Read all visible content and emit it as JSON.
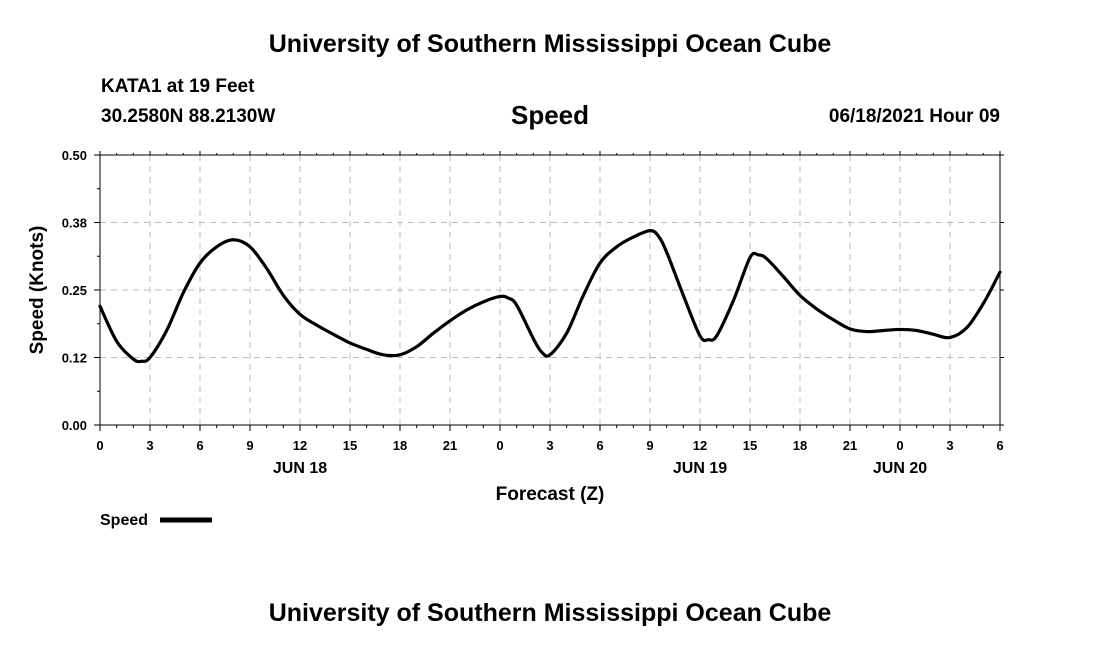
{
  "header": {
    "title": "University of Southern Mississippi Ocean Cube",
    "station": "KATA1 at 19 Feet",
    "coordinates": "30.2580N  88.2130W",
    "datetime": "06/18/2021 Hour 09"
  },
  "footer": {
    "title": "University of Southern Mississippi Ocean Cube"
  },
  "colors": {
    "line": "#000000",
    "grid": "#bbbbbb"
  },
  "chart_data": {
    "type": "line",
    "title": "Speed",
    "xlabel": "Forecast (Z)",
    "ylabel": "Speed (Knots)",
    "ylim": [
      0,
      0.5
    ],
    "xlim": [
      0,
      54
    ],
    "grid": true,
    "legend_position": "bottom-left",
    "y_ticks": [
      {
        "value": 0.0,
        "label": "0.00"
      },
      {
        "value": 0.125,
        "label": "0.12"
      },
      {
        "value": 0.25,
        "label": "0.25"
      },
      {
        "value": 0.375,
        "label": "0.38"
      },
      {
        "value": 0.5,
        "label": "0.50"
      }
    ],
    "x_ticks": [
      {
        "value": 0,
        "label": "0"
      },
      {
        "value": 3,
        "label": "3"
      },
      {
        "value": 6,
        "label": "6"
      },
      {
        "value": 9,
        "label": "9"
      },
      {
        "value": 12,
        "label": "12"
      },
      {
        "value": 15,
        "label": "15"
      },
      {
        "value": 18,
        "label": "18"
      },
      {
        "value": 21,
        "label": "21"
      },
      {
        "value": 24,
        "label": "0"
      },
      {
        "value": 27,
        "label": "3"
      },
      {
        "value": 30,
        "label": "6"
      },
      {
        "value": 33,
        "label": "9"
      },
      {
        "value": 36,
        "label": "12"
      },
      {
        "value": 39,
        "label": "15"
      },
      {
        "value": 42,
        "label": "18"
      },
      {
        "value": 45,
        "label": "21"
      },
      {
        "value": 48,
        "label": "0"
      },
      {
        "value": 51,
        "label": "3"
      },
      {
        "value": 54,
        "label": "6"
      }
    ],
    "day_labels": [
      {
        "value": 12,
        "label": "JUN 18"
      },
      {
        "value": 36,
        "label": "JUN 19"
      },
      {
        "value": 48,
        "label": "JUN 20"
      }
    ],
    "series": [
      {
        "name": "Speed",
        "x": [
          0,
          1,
          2,
          2.5,
          3,
          4,
          5,
          6,
          7,
          8,
          9,
          10,
          11,
          12,
          13,
          14,
          15,
          16,
          17,
          18,
          19,
          20,
          21,
          22,
          23,
          24,
          24.5,
          25,
          26,
          26.5,
          27,
          28,
          29,
          30,
          31,
          32,
          33,
          33.5,
          34,
          35,
          36,
          36.5,
          37,
          38,
          39,
          39.5,
          40,
          41,
          42,
          43,
          44,
          45,
          46,
          47,
          48,
          49,
          50,
          51,
          52,
          53,
          54
        ],
        "values": [
          0.22,
          0.155,
          0.122,
          0.118,
          0.125,
          0.175,
          0.245,
          0.3,
          0.33,
          0.343,
          0.33,
          0.29,
          0.24,
          0.205,
          0.185,
          0.168,
          0.152,
          0.14,
          0.13,
          0.13,
          0.145,
          0.17,
          0.193,
          0.213,
          0.228,
          0.238,
          0.235,
          0.222,
          0.16,
          0.135,
          0.13,
          0.17,
          0.24,
          0.3,
          0.33,
          0.348,
          0.36,
          0.35,
          0.32,
          0.24,
          0.165,
          0.158,
          0.165,
          0.23,
          0.31,
          0.315,
          0.308,
          0.275,
          0.24,
          0.215,
          0.195,
          0.178,
          0.173,
          0.175,
          0.177,
          0.175,
          0.168,
          0.162,
          0.18,
          0.225,
          0.283
        ]
      }
    ],
    "legend": [
      {
        "label": "Speed"
      }
    ]
  }
}
